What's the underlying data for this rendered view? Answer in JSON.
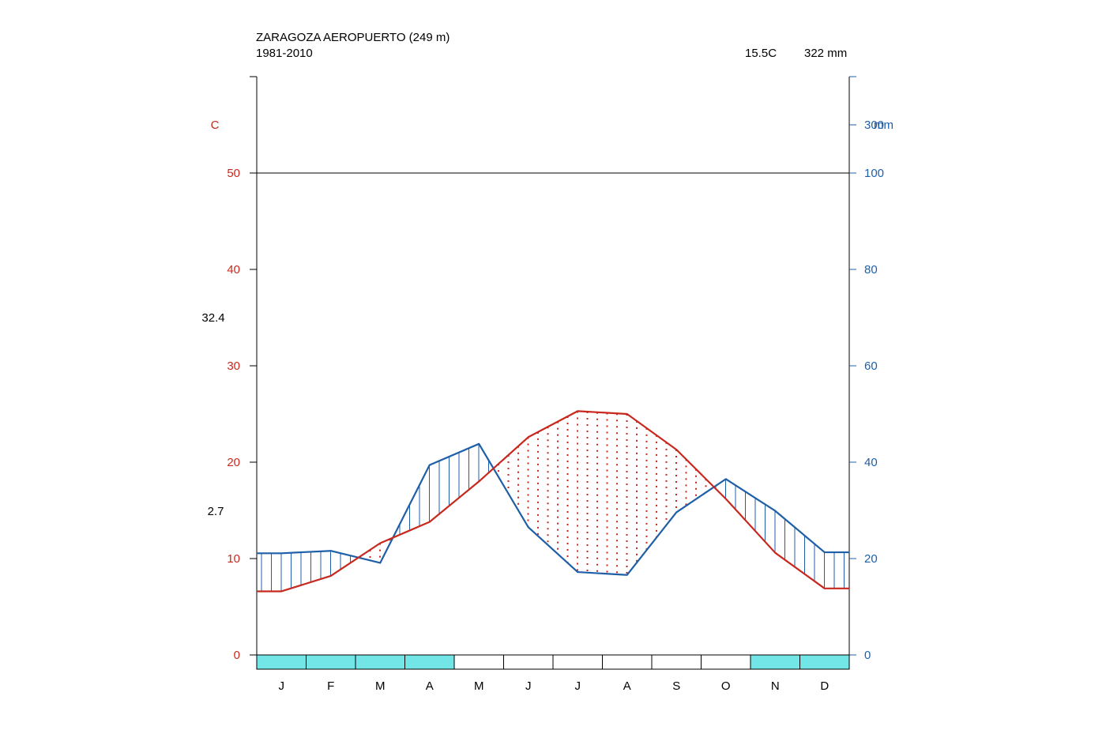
{
  "header": {
    "station": "ZARAGOZA AEROPUERTO (249 m)",
    "period": "1981-2010",
    "mean_temp": "15.5C",
    "annual_precip": "322 mm"
  },
  "chart_data": {
    "type": "line",
    "title": "ZARAGOZA AEROPUERTO (249 m)",
    "subtitle": "1981-2010",
    "months": [
      "J",
      "F",
      "M",
      "A",
      "M",
      "J",
      "J",
      "A",
      "S",
      "O",
      "N",
      "D"
    ],
    "temp_axis": {
      "label": "C",
      "ticks": [
        "0",
        "10",
        "20",
        "30",
        "40",
        "50"
      ],
      "ylim": [
        0,
        60
      ],
      "color": "#c8281e"
    },
    "precip_axis": {
      "label": "mm",
      "ticks": [
        "0",
        "20",
        "40",
        "60",
        "80",
        "100",
        "300"
      ],
      "color": "#1f5fa8"
    },
    "left_annotations": {
      "max_temp": "32.4",
      "min_temp": "2.7"
    },
    "series": [
      {
        "name": "temperature",
        "unit": "C",
        "color": "#c8281e",
        "values": [
          6.6,
          8.2,
          11.6,
          13.8,
          18.0,
          22.6,
          25.3,
          25.0,
          21.3,
          16.2,
          10.6,
          6.9
        ]
      },
      {
        "name": "precipitation",
        "unit": "mm",
        "color": "#1f5fa8",
        "values": [
          21.1,
          21.6,
          19.1,
          39.4,
          43.8,
          26.5,
          17.2,
          16.6,
          29.6,
          36.5,
          29.9,
          21.3
        ]
      }
    ],
    "frost_months": {
      "color": "#72e6e6",
      "flags": [
        true,
        true,
        true,
        true,
        false,
        false,
        false,
        false,
        false,
        false,
        true,
        true
      ]
    }
  }
}
